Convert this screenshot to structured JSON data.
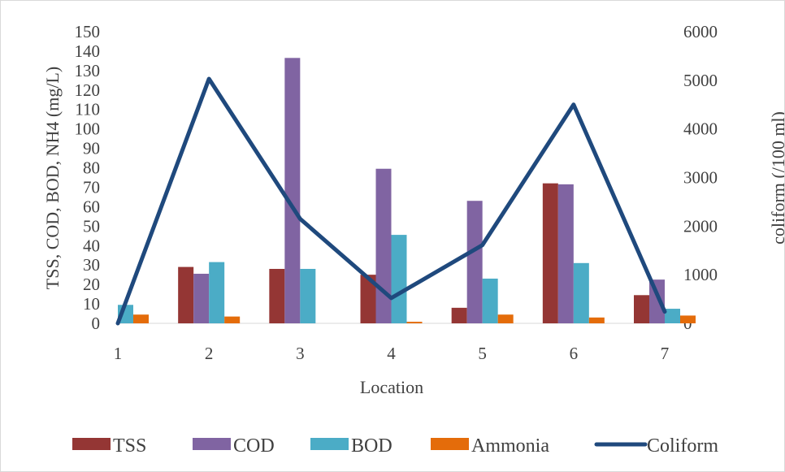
{
  "chart_data": {
    "type": "bar",
    "combo": "bar + line (secondary axis)",
    "title": "",
    "xlabel": "Location",
    "ylabel": "TSS, COD, BOD, NH4 (mg/L)",
    "y2label": "coliform (/100 ml)",
    "ylim": [
      0,
      150
    ],
    "y2lim": [
      0,
      6000
    ],
    "yticks": [
      "0",
      "10",
      "20",
      "30",
      "40",
      "50",
      "60",
      "70",
      "80",
      "90",
      "100",
      "110",
      "120",
      "130",
      "140",
      "150"
    ],
    "y2ticks": [
      "0",
      "1000",
      "2000",
      "3000",
      "4000",
      "5000",
      "6000"
    ],
    "categories": [
      "1",
      "2",
      "3",
      "4",
      "5",
      "6",
      "7"
    ],
    "grid": false,
    "legend_position": "bottom",
    "series": [
      {
        "name": "TSS",
        "type": "bar",
        "axis": "left",
        "color": "#943634",
        "values": [
          0,
          29,
          28,
          25,
          8,
          72,
          14.5
        ]
      },
      {
        "name": "COD",
        "type": "bar",
        "axis": "left",
        "color": "#8064a2",
        "values": [
          0,
          25.5,
          136.5,
          79.5,
          63,
          71.5,
          22.5
        ]
      },
      {
        "name": "BOD",
        "type": "bar",
        "axis": "left",
        "color": "#4bacc6",
        "values": [
          9.5,
          31.5,
          28,
          45.5,
          23,
          31,
          7.5
        ]
      },
      {
        "name": "Ammonia",
        "type": "bar",
        "axis": "left",
        "color": "#e46c0a",
        "values": [
          4.5,
          3.5,
          0,
          0.8,
          4.5,
          3,
          4
        ]
      },
      {
        "name": "Coliform",
        "type": "line",
        "axis": "right",
        "color": "#1f497d",
        "values": [
          0,
          5030,
          2150,
          520,
          1610,
          4500,
          240
        ]
      }
    ]
  }
}
